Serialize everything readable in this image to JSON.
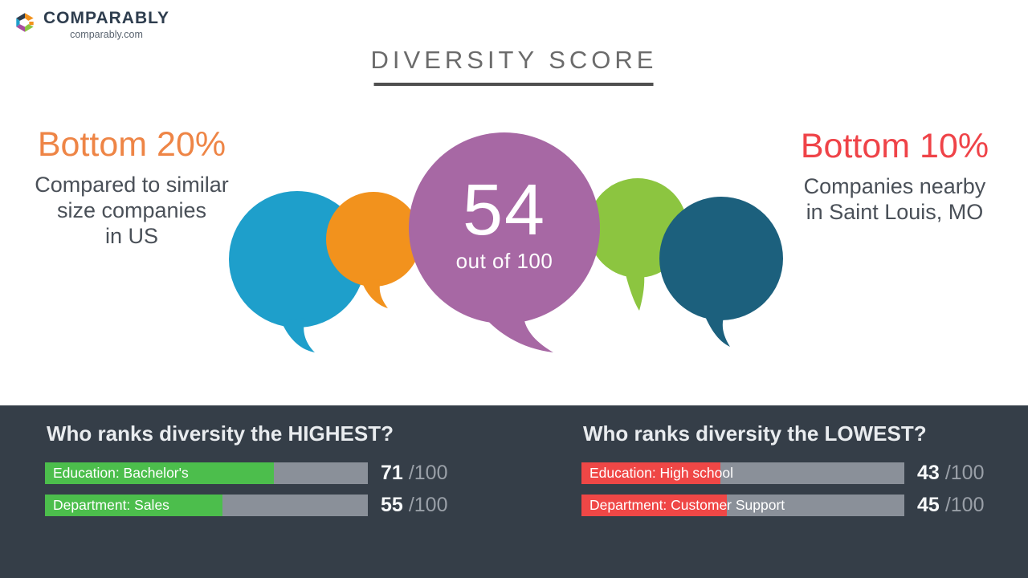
{
  "brand": {
    "name": "COMPARABLY",
    "site": "comparably.com"
  },
  "title": "DIVERSITY SCORE",
  "score": {
    "value": 54,
    "caption": "out of 100"
  },
  "left_callout": {
    "headline": "Bottom 20%",
    "lines": [
      "Compared to similar",
      "size companies",
      "in US"
    ]
  },
  "right_callout": {
    "headline": "Bottom 10%",
    "lines": [
      "Companies nearby",
      "in Saint Louis, MO"
    ]
  },
  "colors": {
    "callout_left_orange": "#EE8546",
    "callout_right_red": "#EF4348",
    "band_background": "#353E48",
    "bar_track_gray": "#8A9099",
    "bar_high_green": "#4CBE4C",
    "bar_low_red": "#EF4746",
    "title_gray": "#6B6B6B",
    "body_text": "#4A5058"
  },
  "bubbles": {
    "teal": {
      "color": "#1E9FCB"
    },
    "orange": {
      "color": "#F2921D"
    },
    "green": {
      "color": "#8CC540"
    },
    "darkblue": {
      "color": "#1C607D"
    },
    "purple": {
      "color": "#A768A4"
    }
  },
  "chart_data": {
    "type": "bar",
    "title": "DIVERSITY SCORE",
    "score": {
      "value": 54,
      "out_of": 100
    },
    "context": [
      {
        "rank": "Bottom 20%",
        "scope": "Compared to similar size companies in US"
      },
      {
        "rank": "Bottom 10%",
        "scope": "Companies nearby in Saint Louis, MO"
      }
    ],
    "xlim": [
      0,
      100
    ],
    "groups": [
      {
        "title": "Who ranks diversity the HIGHEST?",
        "bar_color": "#4CBE4C",
        "items": [
          {
            "label": "Education: Bachelor's",
            "value": 71,
            "max": 100,
            "max_label": "/100"
          },
          {
            "label": "Department: Sales",
            "value": 55,
            "max": 100,
            "max_label": "/100"
          }
        ]
      },
      {
        "title": "Who ranks diversity the LOWEST?",
        "bar_color": "#EF4746",
        "items": [
          {
            "label": "Education: High school",
            "value": 43,
            "max": 100,
            "max_label": "/100"
          },
          {
            "label": "Department: Customer Support",
            "value": 45,
            "max": 100,
            "max_label": "/100"
          }
        ]
      }
    ]
  }
}
